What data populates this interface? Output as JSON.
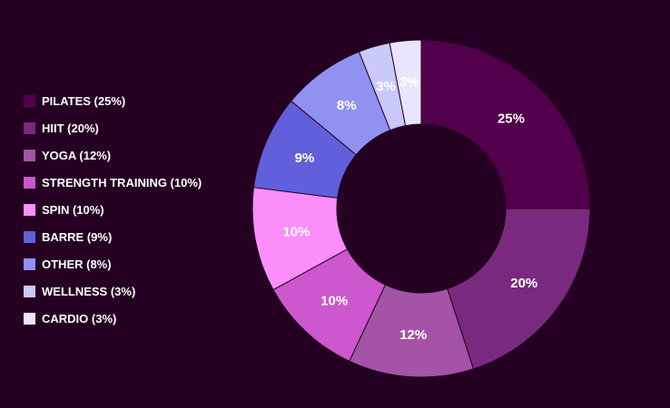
{
  "chart_data": {
    "type": "pie",
    "donut": true,
    "legend_position": "left",
    "categories": [
      "PILATES",
      "HIIT",
      "YOGA",
      "STRENGTH TRAINING",
      "SPIN",
      "BARRE",
      "OTHER",
      "WELLNESS",
      "CARDIO"
    ],
    "values": [
      25,
      20,
      12,
      10,
      10,
      9,
      8,
      3,
      3
    ],
    "slice_labels": [
      "25%",
      "20%",
      "12%",
      "10%",
      "10%",
      "9%",
      "8%",
      "3%",
      "3%"
    ],
    "legend_labels": [
      "PILATES (25%)",
      "HIIT (20%)",
      "YOGA (12%)",
      "STRENGTH TRAINING (10%)",
      "SPIN (10%)",
      "BARRE (9%)",
      "OTHER (8%)",
      "WELLNESS (3%)",
      "CARDIO (3%)"
    ],
    "colors": [
      "#52004b",
      "#7a2a7e",
      "#a453a6",
      "#cd57cd",
      "#fc8efc",
      "#615fdb",
      "#9191f2",
      "#cac9fb",
      "#e7e6fe"
    ]
  },
  "colors": {
    "background": "#250023",
    "text": "#ffffff"
  }
}
